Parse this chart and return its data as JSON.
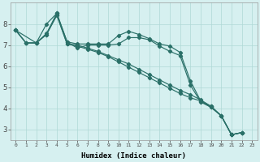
{
  "xlabel": "Humidex (Indice chaleur)",
  "background_color": "#d6f0f0",
  "grid_color": "#afd8d5",
  "line_color": "#2a7068",
  "xlim": [
    -0.5,
    23.5
  ],
  "ylim": [
    2.5,
    9.0
  ],
  "yticks": [
    3,
    4,
    5,
    6,
    7,
    8
  ],
  "xticks": [
    0,
    1,
    2,
    3,
    4,
    5,
    6,
    7,
    8,
    9,
    10,
    11,
    12,
    13,
    14,
    15,
    16,
    17,
    18,
    19,
    20,
    21,
    22,
    23
  ],
  "line1_x": [
    0,
    1,
    2,
    3,
    4,
    5,
    6,
    7,
    8,
    9,
    10,
    11,
    12,
    13,
    14,
    15,
    16,
    17,
    18,
    19,
    20,
    21,
    22
  ],
  "line1_y": [
    7.7,
    7.1,
    7.1,
    7.55,
    8.5,
    7.15,
    7.05,
    7.05,
    7.05,
    7.05,
    7.45,
    7.65,
    7.5,
    7.3,
    7.05,
    6.95,
    6.65,
    5.3,
    4.35,
    4.1,
    3.65,
    2.75,
    2.85
  ],
  "line2_x": [
    0,
    2,
    3,
    4,
    5,
    6,
    7,
    8,
    9,
    10,
    11,
    12,
    13,
    14,
    15,
    16,
    17,
    18,
    19,
    20,
    21,
    22
  ],
  "line2_y": [
    7.7,
    7.1,
    8.0,
    8.5,
    7.15,
    6.85,
    7.0,
    7.0,
    7.0,
    7.05,
    7.35,
    7.35,
    7.25,
    6.95,
    6.7,
    6.5,
    5.1,
    4.3,
    4.05,
    3.65,
    2.75,
    2.85
  ],
  "line3_x": [
    0,
    1,
    2,
    3,
    4,
    5,
    6,
    7,
    8,
    9,
    10,
    11,
    12,
    13,
    14,
    15,
    16,
    17,
    18,
    19,
    20,
    21,
    22
  ],
  "line3_y": [
    7.7,
    7.1,
    7.1,
    7.5,
    8.45,
    7.05,
    7.0,
    6.85,
    6.7,
    6.5,
    6.3,
    6.1,
    5.85,
    5.6,
    5.35,
    5.1,
    4.85,
    4.65,
    4.4,
    4.1,
    3.65,
    2.75,
    2.85
  ],
  "line4_x": [
    0,
    1,
    2,
    3,
    4,
    5,
    6,
    7,
    8,
    9,
    10,
    11,
    12,
    13,
    14,
    15,
    16,
    17,
    18,
    19,
    20,
    21,
    22
  ],
  "line4_y": [
    7.7,
    7.1,
    7.1,
    7.5,
    8.4,
    7.05,
    6.95,
    6.8,
    6.65,
    6.45,
    6.2,
    5.95,
    5.7,
    5.45,
    5.2,
    4.95,
    4.7,
    4.5,
    4.35,
    4.05,
    3.65,
    2.75,
    2.85
  ]
}
